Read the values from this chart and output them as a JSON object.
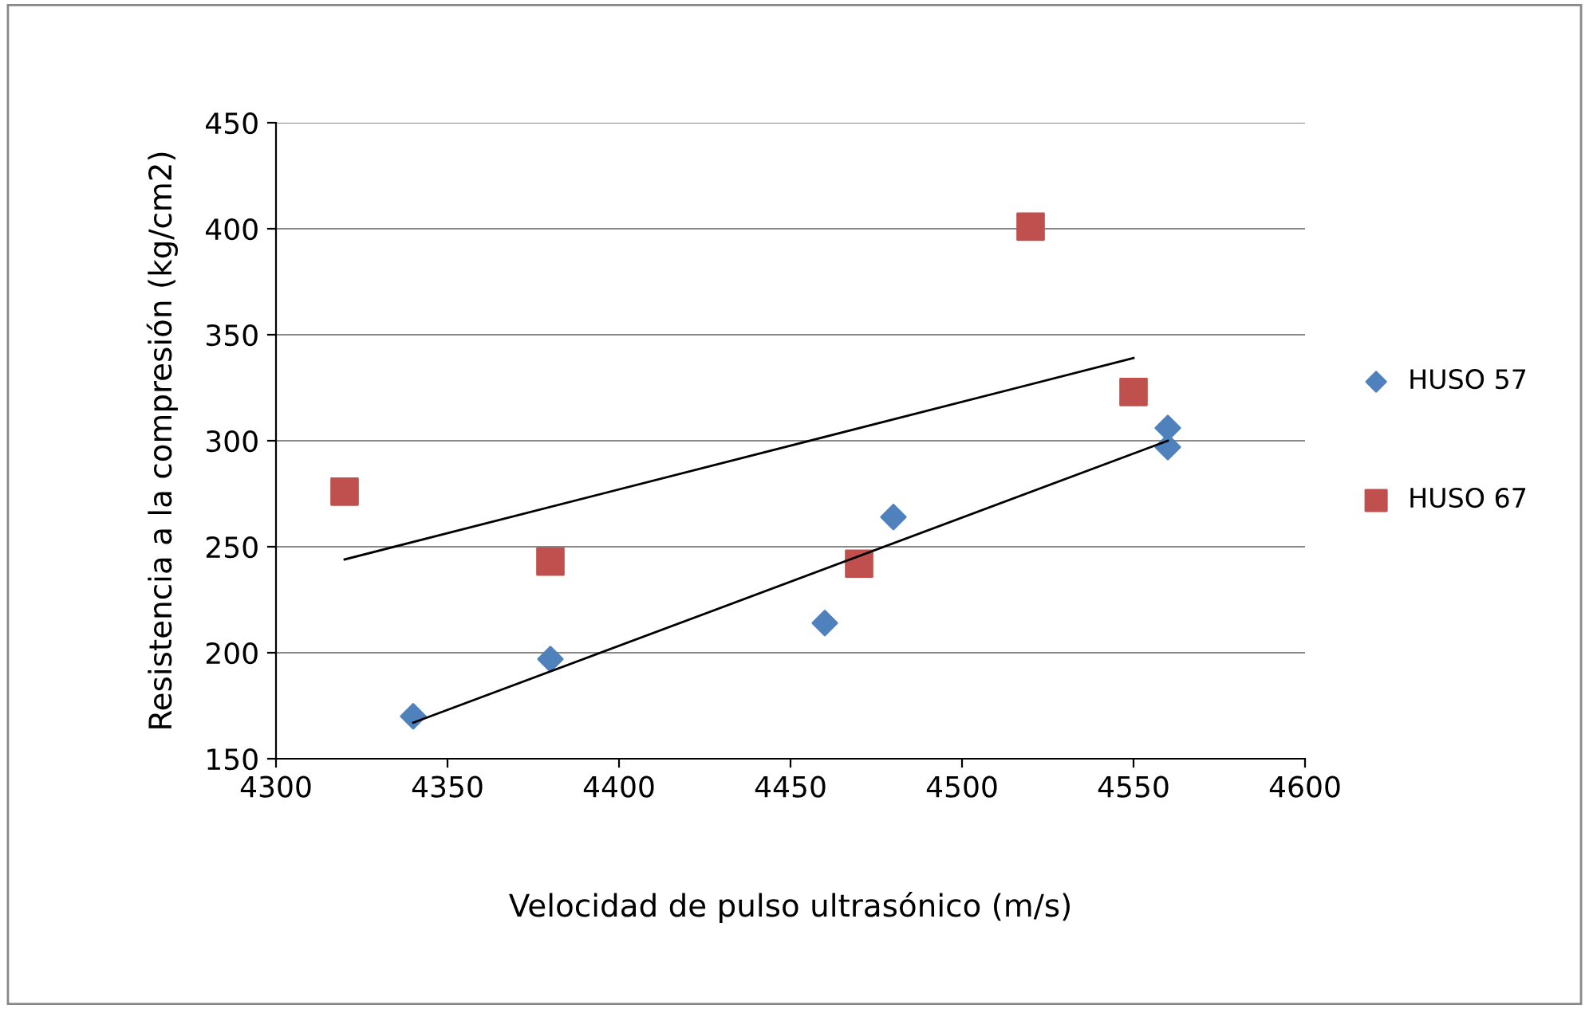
{
  "chart_data": {
    "type": "scatter",
    "xlabel": "Velocidad de pulso ultrasónico (m/s)",
    "ylabel": "Resistencia a la compresión (kg/cm2)",
    "xlim": [
      4300,
      4600
    ],
    "xticks": [
      4300,
      4350,
      4400,
      4450,
      4500,
      4550,
      4600
    ],
    "ylim": [
      150,
      450
    ],
    "yticks": [
      150,
      200,
      250,
      300,
      350,
      400,
      450
    ],
    "grid": "y",
    "legend": "right",
    "series": [
      {
        "name": "HUSO 57",
        "color": "#4f81bd",
        "marker": "diamond",
        "x": [
          4340,
          4380,
          4460,
          4480,
          4560,
          4560
        ],
        "values": [
          170,
          197,
          214,
          264,
          306,
          297
        ]
      },
      {
        "name": "HUSO 67",
        "color": "#c0504d",
        "marker": "square",
        "x": [
          4320,
          4380,
          4470,
          4520,
          4550
        ],
        "values": [
          276,
          243,
          242,
          401,
          323
        ]
      },
      {
        "type": "line",
        "color": "#000000",
        "marker": "none",
        "x": [
          4340,
          4560
        ],
        "values": [
          167,
          300
        ]
      },
      {
        "type": "line",
        "color": "#000000",
        "marker": "none",
        "x": [
          4320,
          4550
        ],
        "values": [
          244,
          339
        ]
      }
    ]
  }
}
